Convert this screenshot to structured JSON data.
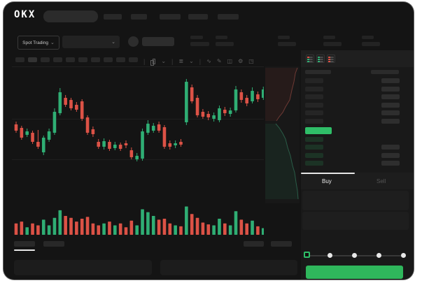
{
  "app": {
    "logo_text": "OKX"
  },
  "subheader": {
    "market_type_label": "Spot Trading"
  },
  "trade_panel": {
    "buy_tab_label": "Buy",
    "sell_tab_label": "Sell"
  },
  "icons": [
    "search-input",
    "pair-selector",
    "avatar",
    "candlestick-type-icon",
    "indicator-icon",
    "wave-icon",
    "pencil-icon",
    "camera-icon",
    "gear-icon",
    "fullscreen-icon",
    "orderbook-combined-icon",
    "orderbook-bids-icon",
    "orderbook-asks-icon"
  ],
  "colors": {
    "up_green": "#2fae74",
    "down_red": "#dc5246",
    "button_green": "#2fb75c",
    "book_price_green": "#2fbe68",
    "window_bg": "#141414",
    "skeleton": "#282828",
    "depth_ask_line": "#6e3a34",
    "depth_bid_line": "#2a5c47"
  },
  "orderbook": {
    "ask_rows": 6,
    "bid_rows": 4,
    "bid_rows_with_amount": [
      2,
      3,
      4
    ]
  },
  "chart_data": {
    "type": "candlestick",
    "title": "",
    "note": "no axis labels or numeric ticks are visible in the screenshot; values are arbitrary chart units",
    "ylim": [
      55,
      185
    ],
    "gridlines_y_units": [
      158,
      83,
      25
    ],
    "candles": [
      {
        "o": 112,
        "h": 116,
        "l": 100,
        "c": 103
      },
      {
        "o": 107,
        "h": 110,
        "l": 90,
        "c": 93
      },
      {
        "o": 97,
        "h": 106,
        "l": 94,
        "c": 102
      },
      {
        "o": 100,
        "h": 103,
        "l": 84,
        "c": 87
      },
      {
        "o": 87,
        "h": 104,
        "l": 77,
        "c": 80
      },
      {
        "o": 72,
        "h": 96,
        "l": 68,
        "c": 93
      },
      {
        "o": 90,
        "h": 106,
        "l": 87,
        "c": 102
      },
      {
        "o": 100,
        "h": 135,
        "l": 97,
        "c": 130
      },
      {
        "o": 128,
        "h": 164,
        "l": 125,
        "c": 158
      },
      {
        "o": 150,
        "h": 154,
        "l": 137,
        "c": 140
      },
      {
        "o": 147,
        "h": 150,
        "l": 132,
        "c": 135
      },
      {
        "o": 140,
        "h": 144,
        "l": 130,
        "c": 133
      },
      {
        "o": 145,
        "h": 148,
        "l": 117,
        "c": 120
      },
      {
        "o": 122,
        "h": 125,
        "l": 97,
        "c": 100
      },
      {
        "o": 105,
        "h": 109,
        "l": 94,
        "c": 98
      },
      {
        "o": 87,
        "h": 91,
        "l": 77,
        "c": 80
      },
      {
        "o": 80,
        "h": 92,
        "l": 76,
        "c": 88
      },
      {
        "o": 87,
        "h": 90,
        "l": 74,
        "c": 77
      },
      {
        "o": 78,
        "h": 87,
        "l": 75,
        "c": 83
      },
      {
        "o": 83,
        "h": 86,
        "l": 74,
        "c": 77
      },
      {
        "o": 85,
        "h": 89,
        "l": 78,
        "c": 82
      },
      {
        "o": 75,
        "h": 79,
        "l": 62,
        "c": 65
      },
      {
        "o": 62,
        "h": 71,
        "l": 59,
        "c": 67
      },
      {
        "o": 63,
        "h": 106,
        "l": 60,
        "c": 102
      },
      {
        "o": 100,
        "h": 118,
        "l": 97,
        "c": 113
      },
      {
        "o": 103,
        "h": 114,
        "l": 100,
        "c": 110
      },
      {
        "o": 112,
        "h": 116,
        "l": 100,
        "c": 103
      },
      {
        "o": 108,
        "h": 111,
        "l": 77,
        "c": 80
      },
      {
        "o": 85,
        "h": 89,
        "l": 76,
        "c": 80
      },
      {
        "o": 82,
        "h": 89,
        "l": 78,
        "c": 85
      },
      {
        "o": 87,
        "h": 91,
        "l": 80,
        "c": 83
      },
      {
        "o": 115,
        "h": 177,
        "l": 111,
        "c": 173
      },
      {
        "o": 165,
        "h": 169,
        "l": 142,
        "c": 145
      },
      {
        "o": 150,
        "h": 154,
        "l": 122,
        "c": 125
      },
      {
        "o": 130,
        "h": 134,
        "l": 120,
        "c": 123
      },
      {
        "o": 127,
        "h": 131,
        "l": 118,
        "c": 122
      },
      {
        "o": 120,
        "h": 129,
        "l": 116,
        "c": 125
      },
      {
        "o": 118,
        "h": 139,
        "l": 115,
        "c": 135
      },
      {
        "o": 133,
        "h": 137,
        "l": 124,
        "c": 128
      },
      {
        "o": 127,
        "h": 136,
        "l": 123,
        "c": 132
      },
      {
        "o": 132,
        "h": 167,
        "l": 129,
        "c": 162
      },
      {
        "o": 158,
        "h": 162,
        "l": 143,
        "c": 147
      },
      {
        "o": 150,
        "h": 154,
        "l": 138,
        "c": 142
      },
      {
        "o": 145,
        "h": 165,
        "l": 142,
        "c": 160
      },
      {
        "o": 155,
        "h": 159,
        "l": 144,
        "c": 148
      },
      {
        "o": 150,
        "h": 166,
        "l": 147,
        "c": 162
      }
    ],
    "volume": [
      12,
      14,
      8,
      12,
      10,
      16,
      10,
      18,
      26,
      20,
      18,
      14,
      17,
      19,
      12,
      10,
      12,
      14,
      10,
      12,
      8,
      15,
      10,
      27,
      24,
      20,
      16,
      17,
      12,
      10,
      9,
      30,
      22,
      18,
      13,
      11,
      10,
      17,
      12,
      10,
      25,
      16,
      12,
      15,
      9,
      7
    ],
    "depth": {
      "asks_curve": [
        [
          48,
          2
        ],
        [
          45,
          10
        ],
        [
          43,
          22
        ],
        [
          40,
          34
        ],
        [
          37,
          48
        ],
        [
          31,
          58
        ],
        [
          27,
          66
        ],
        [
          22,
          72
        ],
        [
          18,
          78
        ]
      ],
      "bids_curve": [
        [
          17,
          82
        ],
        [
          22,
          88
        ],
        [
          27,
          96
        ],
        [
          31,
          104
        ],
        [
          34,
          116
        ],
        [
          38,
          128
        ],
        [
          41,
          142
        ],
        [
          44,
          152
        ],
        [
          46,
          166
        ],
        [
          48,
          178
        ],
        [
          49,
          190
        ]
      ]
    }
  }
}
